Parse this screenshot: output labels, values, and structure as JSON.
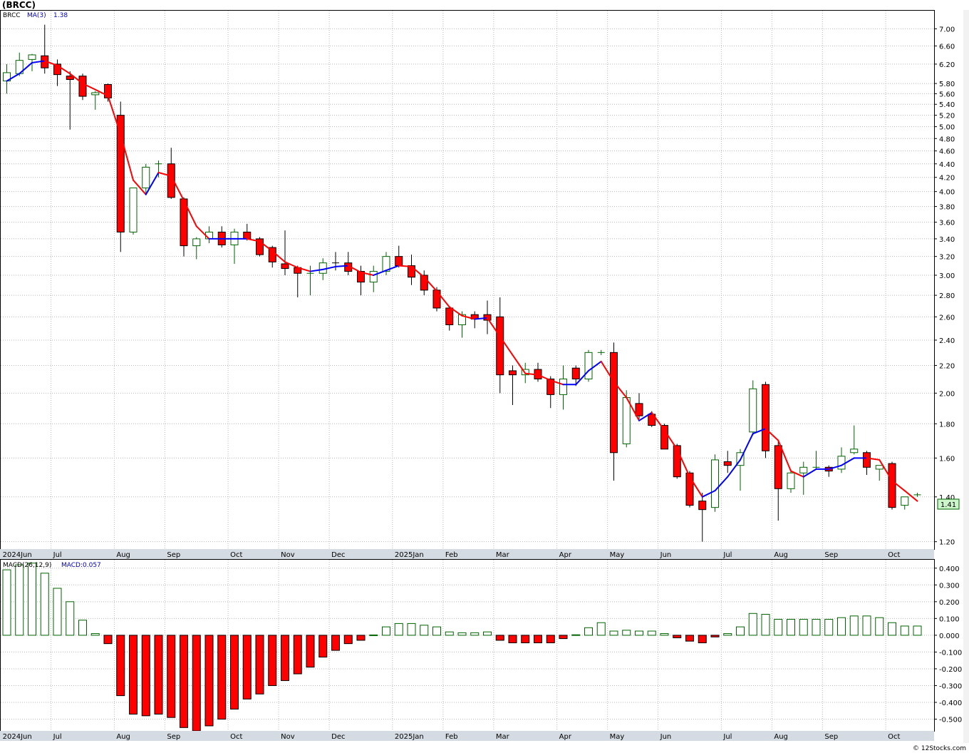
{
  "ticker_title": "(BRCC)",
  "watermark": "© 12Stocks.com",
  "chart_data": [
    {
      "type": "candlestick",
      "series_name": "BRCC",
      "ma_label": "MA(3)",
      "ma_value": "1.38",
      "scale": "log",
      "ylim": [
        1.17,
        7.45
      ],
      "yticks": [
        7.0,
        6.6,
        6.2,
        5.8,
        5.6,
        5.4,
        5.2,
        5.0,
        4.8,
        4.6,
        4.4,
        4.2,
        4.0,
        3.8,
        3.6,
        3.4,
        3.2,
        3.0,
        2.8,
        2.6,
        2.4,
        2.2,
        2.0,
        1.8,
        1.6,
        1.4,
        1.2
      ],
      "last_price_label": "1.41",
      "x_month_labels": [
        "2024Jun",
        "Jul",
        "Aug",
        "Sep",
        "Oct",
        "Nov",
        "Dec",
        "2025Jan",
        "Feb",
        "Mar",
        "Apr",
        "May",
        "Jun",
        "Jul",
        "Aug",
        "Sep",
        "Oct"
      ],
      "month_start_week": [
        0,
        4,
        9,
        13,
        18,
        22,
        26,
        31,
        35,
        39,
        44,
        48,
        52,
        57,
        61,
        65,
        70
      ],
      "candles": [
        {
          "o": 5.85,
          "h": 6.2,
          "l": 5.6,
          "c": 6.02
        },
        {
          "o": 6.0,
          "h": 6.45,
          "l": 5.95,
          "c": 6.28
        },
        {
          "o": 6.3,
          "h": 6.42,
          "l": 6.05,
          "c": 6.4
        },
        {
          "o": 6.38,
          "h": 7.1,
          "l": 6.0,
          "c": 6.12
        },
        {
          "o": 6.2,
          "h": 6.3,
          "l": 5.75,
          "c": 5.98
        },
        {
          "o": 5.95,
          "h": 6.05,
          "l": 4.95,
          "c": 5.88
        },
        {
          "o": 5.95,
          "h": 6.0,
          "l": 5.48,
          "c": 5.55
        },
        {
          "o": 5.58,
          "h": 5.65,
          "l": 5.3,
          "c": 5.62
        },
        {
          "o": 5.78,
          "h": 5.8,
          "l": 5.45,
          "c": 5.52
        },
        {
          "o": 5.2,
          "h": 5.45,
          "l": 3.25,
          "c": 3.48
        },
        {
          "o": 3.48,
          "h": 4.05,
          "l": 3.45,
          "c": 4.05
        },
        {
          "o": 4.05,
          "h": 4.4,
          "l": 3.95,
          "c": 4.35
        },
        {
          "o": 4.4,
          "h": 4.45,
          "l": 4.2,
          "c": 4.4
        },
        {
          "o": 4.4,
          "h": 4.65,
          "l": 3.9,
          "c": 3.92
        },
        {
          "o": 3.9,
          "h": 3.92,
          "l": 3.2,
          "c": 3.32
        },
        {
          "o": 3.32,
          "h": 3.42,
          "l": 3.17,
          "c": 3.4
        },
        {
          "o": 3.4,
          "h": 3.55,
          "l": 3.35,
          "c": 3.48
        },
        {
          "o": 3.48,
          "h": 3.55,
          "l": 3.3,
          "c": 3.33
        },
        {
          "o": 3.33,
          "h": 3.52,
          "l": 3.12,
          "c": 3.48
        },
        {
          "o": 3.48,
          "h": 3.58,
          "l": 3.38,
          "c": 3.4
        },
        {
          "o": 3.4,
          "h": 3.42,
          "l": 3.2,
          "c": 3.22
        },
        {
          "o": 3.3,
          "h": 3.32,
          "l": 3.08,
          "c": 3.14
        },
        {
          "o": 3.12,
          "h": 3.5,
          "l": 3.0,
          "c": 3.07
        },
        {
          "o": 3.08,
          "h": 3.1,
          "l": 2.78,
          "c": 3.02
        },
        {
          "o": 3.02,
          "h": 3.1,
          "l": 2.8,
          "c": 3.02
        },
        {
          "o": 3.02,
          "h": 3.18,
          "l": 2.95,
          "c": 3.13
        },
        {
          "o": 3.13,
          "h": 3.25,
          "l": 3.05,
          "c": 3.12
        },
        {
          "o": 3.13,
          "h": 3.25,
          "l": 3.0,
          "c": 3.04
        },
        {
          "o": 3.04,
          "h": 3.1,
          "l": 2.8,
          "c": 2.93
        },
        {
          "o": 2.93,
          "h": 3.1,
          "l": 2.83,
          "c": 3.04
        },
        {
          "o": 3.04,
          "h": 3.25,
          "l": 3.0,
          "c": 3.2
        },
        {
          "o": 3.2,
          "h": 3.32,
          "l": 3.08,
          "c": 3.1
        },
        {
          "o": 3.1,
          "h": 3.22,
          "l": 2.9,
          "c": 2.98
        },
        {
          "o": 3.0,
          "h": 3.05,
          "l": 2.8,
          "c": 2.85
        },
        {
          "o": 2.85,
          "h": 2.88,
          "l": 2.65,
          "c": 2.68
        },
        {
          "o": 2.68,
          "h": 2.7,
          "l": 2.48,
          "c": 2.53
        },
        {
          "o": 2.53,
          "h": 2.65,
          "l": 2.42,
          "c": 2.62
        },
        {
          "o": 2.62,
          "h": 2.65,
          "l": 2.5,
          "c": 2.58
        },
        {
          "o": 2.62,
          "h": 2.75,
          "l": 2.45,
          "c": 2.57
        },
        {
          "o": 2.6,
          "h": 2.78,
          "l": 2.0,
          "c": 2.13
        },
        {
          "o": 2.16,
          "h": 2.2,
          "l": 1.92,
          "c": 2.13
        },
        {
          "o": 2.13,
          "h": 2.22,
          "l": 2.07,
          "c": 2.17
        },
        {
          "o": 2.17,
          "h": 2.22,
          "l": 2.08,
          "c": 2.1
        },
        {
          "o": 2.1,
          "h": 2.12,
          "l": 1.9,
          "c": 1.99
        },
        {
          "o": 1.99,
          "h": 2.2,
          "l": 1.89,
          "c": 2.1
        },
        {
          "o": 2.18,
          "h": 2.2,
          "l": 2.05,
          "c": 2.1
        },
        {
          "o": 2.1,
          "h": 2.32,
          "l": 2.08,
          "c": 2.3
        },
        {
          "o": 2.3,
          "h": 2.32,
          "l": 2.28,
          "c": 2.3
        },
        {
          "o": 2.3,
          "h": 2.38,
          "l": 1.48,
          "c": 1.63
        },
        {
          "o": 1.68,
          "h": 2.02,
          "l": 1.66,
          "c": 1.97
        },
        {
          "o": 1.93,
          "h": 2.0,
          "l": 1.83,
          "c": 1.85
        },
        {
          "o": 1.86,
          "h": 1.88,
          "l": 1.78,
          "c": 1.79
        },
        {
          "o": 1.79,
          "h": 1.8,
          "l": 1.65,
          "c": 1.65
        },
        {
          "o": 1.67,
          "h": 1.68,
          "l": 1.49,
          "c": 1.5
        },
        {
          "o": 1.52,
          "h": 1.53,
          "l": 1.35,
          "c": 1.36
        },
        {
          "o": 1.38,
          "h": 1.42,
          "l": 1.2,
          "c": 1.34
        },
        {
          "o": 1.35,
          "h": 1.62,
          "l": 1.33,
          "c": 1.59
        },
        {
          "o": 1.58,
          "h": 1.64,
          "l": 1.52,
          "c": 1.56
        },
        {
          "o": 1.56,
          "h": 1.65,
          "l": 1.43,
          "c": 1.63
        },
        {
          "o": 1.75,
          "h": 2.09,
          "l": 1.73,
          "c": 2.03
        },
        {
          "o": 2.06,
          "h": 2.08,
          "l": 1.6,
          "c": 1.64
        },
        {
          "o": 1.67,
          "h": 1.7,
          "l": 1.29,
          "c": 1.44
        },
        {
          "o": 1.44,
          "h": 1.54,
          "l": 1.42,
          "c": 1.52
        },
        {
          "o": 1.52,
          "h": 1.58,
          "l": 1.41,
          "c": 1.55
        },
        {
          "o": 1.55,
          "h": 1.64,
          "l": 1.54,
          "c": 1.55
        },
        {
          "o": 1.55,
          "h": 1.56,
          "l": 1.5,
          "c": 1.53
        },
        {
          "o": 1.54,
          "h": 1.66,
          "l": 1.52,
          "c": 1.61
        },
        {
          "o": 1.63,
          "h": 1.79,
          "l": 1.62,
          "c": 1.65
        },
        {
          "o": 1.63,
          "h": 1.64,
          "l": 1.51,
          "c": 1.55
        },
        {
          "o": 1.54,
          "h": 1.56,
          "l": 1.48,
          "c": 1.56
        },
        {
          "o": 1.57,
          "h": 1.58,
          "l": 1.34,
          "c": 1.35
        },
        {
          "o": 1.36,
          "h": 1.4,
          "l": 1.34,
          "c": 1.4
        },
        {
          "o": 1.41,
          "h": 1.42,
          "l": 1.4,
          "c": 1.41
        }
      ],
      "ma_series": [
        5.85,
        6.0,
        6.23,
        6.27,
        6.17,
        6.0,
        5.8,
        5.68,
        5.56,
        4.87,
        4.16,
        3.96,
        4.27,
        4.22,
        3.88,
        3.55,
        3.4,
        3.4,
        3.4,
        3.4,
        3.37,
        3.26,
        3.14,
        3.08,
        3.04,
        3.06,
        3.09,
        3.1,
        3.03,
        3.0,
        3.05,
        3.1,
        3.09,
        2.98,
        2.84,
        2.69,
        2.61,
        2.58,
        2.59,
        2.43,
        2.28,
        2.14,
        2.13,
        2.09,
        2.06,
        2.06,
        2.16,
        2.23,
        2.08,
        1.97,
        1.82,
        1.87,
        1.76,
        1.65,
        1.5,
        1.4,
        1.43,
        1.5,
        1.59,
        1.74,
        1.77,
        1.7,
        1.53,
        1.5,
        1.54,
        1.54,
        1.56,
        1.6,
        1.6,
        1.59,
        1.48,
        1.43,
        1.38
      ],
      "ma_colors": [
        "#0000ff",
        "#ff0000"
      ],
      "up_color": "#006400",
      "down_color": "#ff0000"
    },
    {
      "type": "bar",
      "series_name": "MACD(26,12,9)",
      "value_label": "MACD:0.057",
      "ylim": [
        -0.57,
        0.45
      ],
      "yticks": [
        0.4,
        0.3,
        0.2,
        0.1,
        0.0,
        -0.1,
        -0.2,
        -0.3,
        -0.4,
        -0.5
      ],
      "ytick_labels": [
        "0.400",
        "0.300",
        "0.200",
        "0.100",
        "0.000",
        "-0.100",
        "-0.200",
        "-0.300",
        "-0.400",
        "-0.500"
      ],
      "x_month_labels": [
        "2024Jun",
        "Jul",
        "Aug",
        "Sep",
        "Oct",
        "Nov",
        "Dec",
        "2025Jan",
        "Feb",
        "Mar",
        "Apr",
        "May",
        "Jun",
        "Jul",
        "Aug",
        "Sep",
        "Oct"
      ],
      "values": [
        0.39,
        0.42,
        0.43,
        0.37,
        0.28,
        0.2,
        0.09,
        0.01,
        -0.05,
        -0.36,
        -0.47,
        -0.48,
        -0.47,
        -0.49,
        -0.55,
        -0.57,
        -0.54,
        -0.5,
        -0.44,
        -0.38,
        -0.35,
        -0.3,
        -0.27,
        -0.23,
        -0.19,
        -0.13,
        -0.09,
        -0.05,
        -0.03,
        0.002,
        0.05,
        0.07,
        0.07,
        0.06,
        0.05,
        0.02,
        0.015,
        0.015,
        0.02,
        -0.03,
        -0.045,
        -0.045,
        -0.045,
        -0.045,
        -0.02,
        0.003,
        0.045,
        0.075,
        0.025,
        0.03,
        0.025,
        0.025,
        0.01,
        -0.015,
        -0.035,
        -0.045,
        -0.01,
        0.01,
        0.05,
        0.13,
        0.125,
        0.095,
        0.095,
        0.095,
        0.095,
        0.095,
        0.105,
        0.115,
        0.115,
        0.105,
        0.075,
        0.055,
        0.055
      ],
      "up_color": "#006400",
      "down_color": "#ff0000"
    }
  ]
}
